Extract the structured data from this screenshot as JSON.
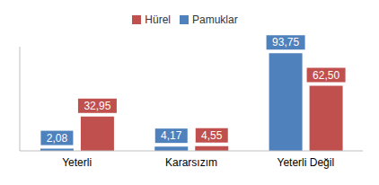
{
  "chart_data": {
    "type": "bar",
    "categories": [
      "Yeterli",
      "Kararsızım",
      "Yeterli Değil"
    ],
    "series": [
      {
        "name": "Pamuklar",
        "color": "#4f81bd",
        "values": [
          2.08,
          4.17,
          93.75
        ],
        "value_labels": [
          "2,08",
          "4,17",
          "93,75"
        ]
      },
      {
        "name": "Hürel",
        "color": "#c0504d",
        "values": [
          32.95,
          4.55,
          62.5
        ],
        "value_labels": [
          "32,95",
          "4,55",
          "62,50"
        ]
      }
    ],
    "ylim": [
      0,
      100
    ],
    "yticks": [],
    "legend": "top",
    "data_labels": true,
    "tick_labels": "x",
    "grid": false
  }
}
